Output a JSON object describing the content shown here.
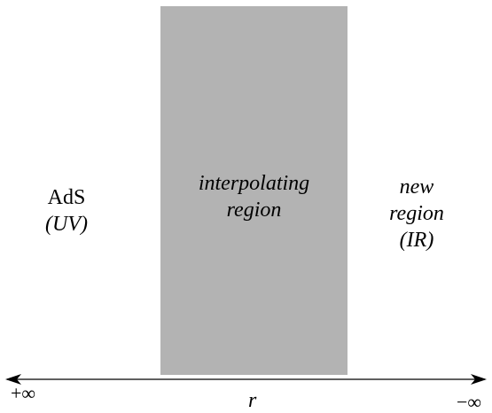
{
  "regions": {
    "left": {
      "line1": "AdS",
      "line2": "(UV)"
    },
    "middle": {
      "line1": "interpolating",
      "line2": "region"
    },
    "right": {
      "line1": "new",
      "line2": "region",
      "line3": "(IR)"
    }
  },
  "axis": {
    "variable": "r",
    "left_end": "+∞",
    "right_end": "−∞"
  },
  "colors": {
    "shaded_region": "#b3b3b3",
    "axis": "#000000"
  }
}
